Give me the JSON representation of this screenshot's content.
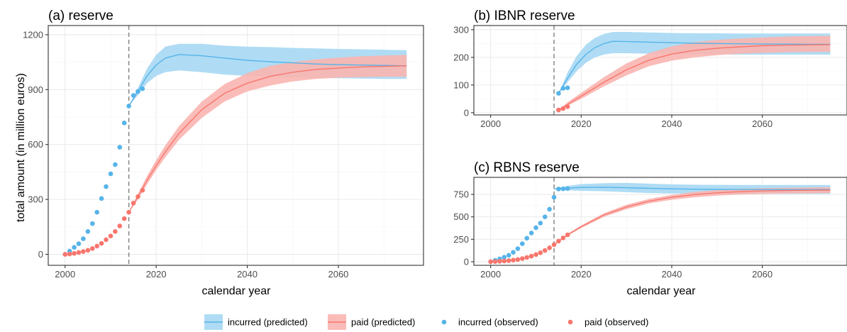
{
  "figure": {
    "y_axis_title": "total amount (in million euros)",
    "x_axis_title": "calendar year"
  },
  "colors": {
    "incurred": "#56B4E9",
    "paid": "#F8766D",
    "ribbon_incurred": "#A6D8F3",
    "ribbon_paid": "#F9B5B0",
    "cutoff_line": "#808080"
  },
  "legend": {
    "items": [
      {
        "key": "incurred_pred",
        "label": "incurred (predicted)",
        "kind": "ribbon-line",
        "series": "incurred"
      },
      {
        "key": "paid_pred",
        "label": "paid (predicted)",
        "kind": "ribbon-line",
        "series": "paid"
      },
      {
        "key": "incurred_obs",
        "label": "incurred (observed)",
        "kind": "point",
        "series": "incurred"
      },
      {
        "key": "paid_obs",
        "label": "paid (observed)",
        "kind": "point",
        "series": "paid"
      }
    ]
  },
  "chart_data": [
    {
      "id": "a",
      "type": "line",
      "title": "(a) reserve",
      "xlabel": "calendar year",
      "ylabel": "total amount (in million euros)",
      "xlim": [
        1996.3,
        2078.7
      ],
      "ylim": [
        -60,
        1250
      ],
      "x_ticks": [
        2000,
        2020,
        2040,
        2060
      ],
      "y_ticks": [
        0,
        300,
        600,
        900,
        1200
      ],
      "cutoff_year": 2014,
      "observed": {
        "incurred": {
          "x": [
            2000,
            2001,
            2002,
            2003,
            2004,
            2005,
            2006,
            2007,
            2008,
            2009,
            2010,
            2011,
            2012,
            2013,
            2014,
            2015,
            2016,
            2017
          ],
          "y": [
            0,
            18,
            38,
            58,
            85,
            125,
            168,
            230,
            305,
            370,
            440,
            490,
            585,
            718,
            810,
            868,
            890,
            905
          ]
        },
        "paid": {
          "x": [
            2000,
            2001,
            2002,
            2003,
            2004,
            2005,
            2006,
            2007,
            2008,
            2009,
            2010,
            2011,
            2012,
            2013,
            2014,
            2015,
            2016,
            2017
          ],
          "y": [
            0,
            2,
            5,
            10,
            15,
            22,
            32,
            45,
            60,
            80,
            100,
            125,
            155,
            195,
            230,
            280,
            315,
            350
          ]
        }
      },
      "predicted": {
        "incurred": {
          "x": [
            2014,
            2016,
            2018,
            2020,
            2022,
            2025,
            2030,
            2035,
            2040,
            2045,
            2050,
            2055,
            2060,
            2065,
            2070,
            2075
          ],
          "y": [
            810,
            890,
            975,
            1035,
            1072,
            1092,
            1085,
            1072,
            1060,
            1052,
            1046,
            1040,
            1036,
            1034,
            1032,
            1030
          ],
          "lower": [
            810,
            870,
            935,
            975,
            995,
            1005,
            995,
            982,
            975,
            972,
            968,
            965,
            962,
            960,
            958,
            958
          ],
          "upper": [
            810,
            910,
            1015,
            1090,
            1135,
            1150,
            1150,
            1140,
            1135,
            1132,
            1128,
            1125,
            1122,
            1120,
            1118,
            1115
          ]
        },
        "paid": {
          "x": [
            2014,
            2016,
            2018,
            2020,
            2022,
            2025,
            2030,
            2035,
            2040,
            2045,
            2050,
            2055,
            2060,
            2065,
            2070,
            2075
          ],
          "y": [
            230,
            315,
            405,
            485,
            560,
            660,
            790,
            880,
            935,
            972,
            995,
            1010,
            1018,
            1024,
            1027,
            1030
          ],
          "lower": [
            230,
            300,
            382,
            460,
            530,
            625,
            745,
            835,
            890,
            922,
            945,
            958,
            965,
            968,
            970,
            970
          ],
          "upper": [
            230,
            330,
            428,
            515,
            595,
            700,
            835,
            930,
            990,
            1030,
            1050,
            1065,
            1075,
            1082,
            1086,
            1090
          ]
        }
      }
    },
    {
      "id": "b",
      "type": "line",
      "title": "(b) IBNR reserve",
      "xlim": [
        1996.3,
        2078.7
      ],
      "ylim": [
        -8,
        315
      ],
      "x_ticks": [
        2000,
        2020,
        2040,
        2060
      ],
      "y_ticks": [
        0,
        100,
        200,
        300
      ],
      "cutoff_year": 2014,
      "observed": {
        "incurred": {
          "x": [
            2015,
            2016,
            2017
          ],
          "y": [
            70,
            88,
            90
          ]
        },
        "paid": {
          "x": [
            2015,
            2016,
            2017
          ],
          "y": [
            10,
            15,
            22
          ]
        }
      },
      "predicted": {
        "incurred": {
          "x": [
            2015,
            2017,
            2019,
            2021,
            2023,
            2025,
            2027,
            2030,
            2035,
            2040,
            2045,
            2050,
            2055,
            2060,
            2065,
            2070,
            2075
          ],
          "y": [
            70,
            125,
            175,
            210,
            235,
            250,
            258,
            257,
            255,
            253,
            251,
            250,
            249,
            248,
            248,
            247,
            247
          ],
          "lower": [
            70,
            110,
            150,
            180,
            200,
            210,
            215,
            215,
            213,
            212,
            211,
            211,
            210,
            210,
            210,
            210,
            210
          ],
          "upper": [
            70,
            145,
            205,
            245,
            270,
            285,
            292,
            292,
            290,
            288,
            287,
            287,
            286,
            286,
            286,
            286,
            286
          ]
        },
        "paid": {
          "x": [
            2015,
            2017,
            2020,
            2025,
            2030,
            2035,
            2040,
            2045,
            2050,
            2055,
            2060,
            2065,
            2070,
            2075
          ],
          "y": [
            10,
            30,
            60,
            110,
            155,
            190,
            212,
            225,
            233,
            238,
            242,
            244,
            245,
            246
          ],
          "lower": [
            10,
            25,
            50,
            95,
            135,
            168,
            188,
            200,
            208,
            213,
            216,
            218,
            219,
            220
          ],
          "upper": [
            10,
            38,
            72,
            128,
            178,
            215,
            240,
            255,
            263,
            268,
            272,
            275,
            277,
            278
          ]
        }
      }
    },
    {
      "id": "c",
      "type": "line",
      "title": "(c) RBNS reserve",
      "xlim": [
        1996.3,
        2078.7
      ],
      "ylim": [
        -40,
        940
      ],
      "x_ticks": [
        2000,
        2020,
        2040,
        2060
      ],
      "y_ticks": [
        0,
        250,
        500,
        750
      ],
      "cutoff_year": 2014,
      "observed": {
        "incurred": {
          "x": [
            2000,
            2001,
            2002,
            2003,
            2004,
            2005,
            2006,
            2007,
            2008,
            2009,
            2010,
            2011,
            2012,
            2013,
            2014,
            2015,
            2016,
            2017
          ],
          "y": [
            0,
            15,
            32,
            50,
            72,
            105,
            145,
            200,
            262,
            320,
            380,
            430,
            500,
            585,
            718,
            810,
            812,
            815
          ]
        },
        "paid": {
          "x": [
            2000,
            2001,
            2002,
            2003,
            2004,
            2005,
            2006,
            2007,
            2008,
            2009,
            2010,
            2011,
            2012,
            2013,
            2014,
            2015,
            2016,
            2017
          ],
          "y": [
            0,
            2,
            5,
            8,
            12,
            18,
            25,
            35,
            48,
            62,
            80,
            100,
            125,
            155,
            190,
            230,
            265,
            300
          ]
        }
      },
      "predicted": {
        "incurred": {
          "x": [
            2014,
            2017,
            2020,
            2025,
            2030,
            2035,
            2040,
            2045,
            2050,
            2055,
            2060,
            2065,
            2070,
            2075
          ],
          "y": [
            810,
            820,
            828,
            830,
            825,
            818,
            812,
            808,
            806,
            805,
            804,
            804,
            804,
            804
          ],
          "lower": [
            810,
            795,
            790,
            785,
            775,
            765,
            760,
            758,
            757,
            756,
            756,
            756,
            756,
            756
          ],
          "upper": [
            810,
            845,
            865,
            875,
            878,
            870,
            862,
            858,
            856,
            855,
            855,
            855,
            855,
            855
          ]
        },
        "paid": {
          "x": [
            2014,
            2017,
            2020,
            2025,
            2030,
            2035,
            2040,
            2045,
            2050,
            2055,
            2060,
            2065,
            2070,
            2075
          ],
          "y": [
            190,
            300,
            390,
            520,
            610,
            675,
            718,
            748,
            768,
            780,
            788,
            793,
            796,
            798
          ],
          "lower": [
            190,
            290,
            375,
            500,
            585,
            650,
            690,
            718,
            737,
            748,
            755,
            760,
            762,
            764
          ],
          "upper": [
            190,
            310,
            405,
            540,
            635,
            700,
            745,
            778,
            798,
            812,
            820,
            825,
            828,
            830
          ]
        }
      }
    }
  ]
}
